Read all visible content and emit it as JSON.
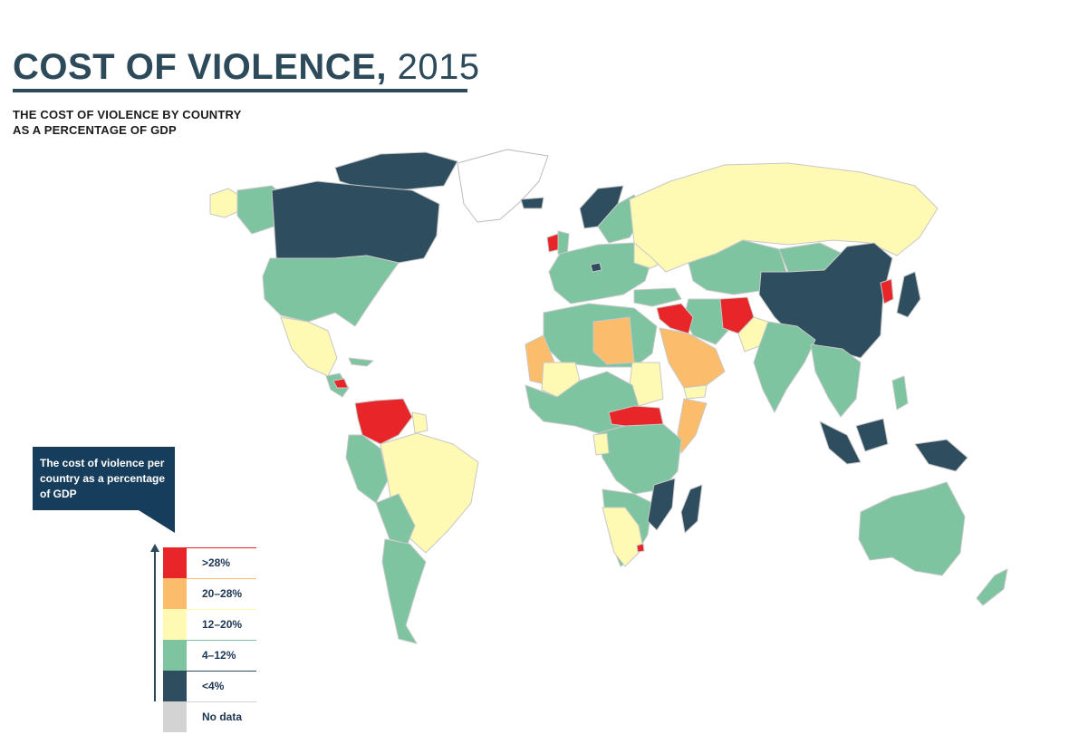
{
  "title": {
    "bold": "COST OF VIOLENCE,",
    "year": "2015"
  },
  "subtitle": {
    "line1": "THE COST OF VIOLENCE BY COUNTRY",
    "line2": "AS A PERCENTAGE OF GDP"
  },
  "legend": {
    "box_text": "The cost of violence per country as a percentage of GDP",
    "items": [
      {
        "label": ">28%",
        "color": "#e8262a"
      },
      {
        "label": "20–28%",
        "color": "#fbbd6b"
      },
      {
        "label": "12–20%",
        "color": "#fef9b3"
      },
      {
        "label": "4–12%",
        "color": "#7fc4a1"
      },
      {
        "label": "<4%",
        "color": "#2e4e60"
      },
      {
        "label": "No data",
        "color": "#d3d3d3"
      }
    ]
  },
  "colors": {
    "title": "#2d4a5a",
    "legend_box": "#173d5c",
    "border": "#c8c8c8"
  }
}
